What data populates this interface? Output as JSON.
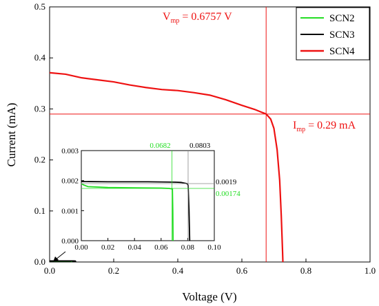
{
  "chart_data": {
    "type": "line",
    "xlabel": "Voltage (V)",
    "ylabel": "Current (mA)",
    "xlim": [
      0.0,
      1.0
    ],
    "ylim": [
      0.0,
      0.5
    ],
    "x_ticks": [
      "0.0",
      "0.2",
      "0.4",
      "0.6",
      "0.8",
      "1.0"
    ],
    "y_ticks": [
      "0.0",
      "0.1",
      "0.2",
      "0.3",
      "0.4",
      "0.5"
    ],
    "legend_position": "top-right",
    "series": [
      {
        "name": "SCN2",
        "color": "#22dd22",
        "points": [
          [
            0.0,
            0.0019
          ],
          [
            0.002,
            0.00185
          ],
          [
            0.005,
            0.0018
          ],
          [
            0.02,
            0.00177
          ],
          [
            0.04,
            0.00176
          ],
          [
            0.06,
            0.00175
          ],
          [
            0.066,
            0.00174
          ],
          [
            0.0685,
            0.00172
          ],
          [
            0.0688,
            0.001
          ],
          [
            0.069,
            0.0
          ]
        ]
      },
      {
        "name": "SCN3",
        "color": "#000000",
        "points": [
          [
            0.0,
            0.00197
          ],
          [
            0.02,
            0.00196
          ],
          [
            0.05,
            0.00196
          ],
          [
            0.07,
            0.00195
          ],
          [
            0.075,
            0.00194
          ],
          [
            0.0795,
            0.0019
          ],
          [
            0.0803,
            0.00185
          ],
          [
            0.081,
            0.001
          ],
          [
            0.0815,
            0.0
          ]
        ]
      },
      {
        "name": "SCN4",
        "color": "#ee1111",
        "points": [
          [
            0.0,
            0.371
          ],
          [
            0.05,
            0.368
          ],
          [
            0.1,
            0.361
          ],
          [
            0.15,
            0.357
          ],
          [
            0.2,
            0.353
          ],
          [
            0.25,
            0.347
          ],
          [
            0.3,
            0.342
          ],
          [
            0.35,
            0.338
          ],
          [
            0.4,
            0.336
          ],
          [
            0.45,
            0.332
          ],
          [
            0.5,
            0.327
          ],
          [
            0.55,
            0.318
          ],
          [
            0.6,
            0.307
          ],
          [
            0.64,
            0.299
          ],
          [
            0.6757,
            0.29
          ],
          [
            0.69,
            0.28
          ],
          [
            0.7,
            0.262
          ],
          [
            0.71,
            0.22
          ],
          [
            0.718,
            0.16
          ],
          [
            0.723,
            0.09
          ],
          [
            0.727,
            0.02
          ],
          [
            0.728,
            0.0
          ]
        ]
      }
    ],
    "annotations": {
      "vmp": {
        "main": "V",
        "sub": "mp",
        "rest": " = 0.6757 V",
        "value": 0.6757,
        "color": "#ee1111"
      },
      "imp": {
        "main": "I",
        "sub": "mp",
        "rest": " = 0.29 mA",
        "value": 0.29,
        "color": "#ee1111"
      }
    },
    "inset": {
      "xlim": [
        0.0,
        0.1
      ],
      "ylim": [
        0.0,
        0.003
      ],
      "x_ticks": [
        "0.00",
        "0.02",
        "0.04",
        "0.06",
        "0.08",
        "0.10"
      ],
      "y_ticks": [
        "0.000",
        "0.001",
        "0.002",
        "0.003"
      ],
      "annotations": [
        {
          "label": "0.0682",
          "axis": "x",
          "value": 0.0682,
          "color": "#22dd22"
        },
        {
          "label": "0.0803",
          "axis": "x",
          "value": 0.0803,
          "color": "#000000"
        },
        {
          "label": "0.0019",
          "axis": "y",
          "value": 0.0019,
          "color": "#000000"
        },
        {
          "label": "0.00174",
          "axis": "y",
          "value": 0.00174,
          "color": "#22dd22"
        }
      ]
    }
  }
}
